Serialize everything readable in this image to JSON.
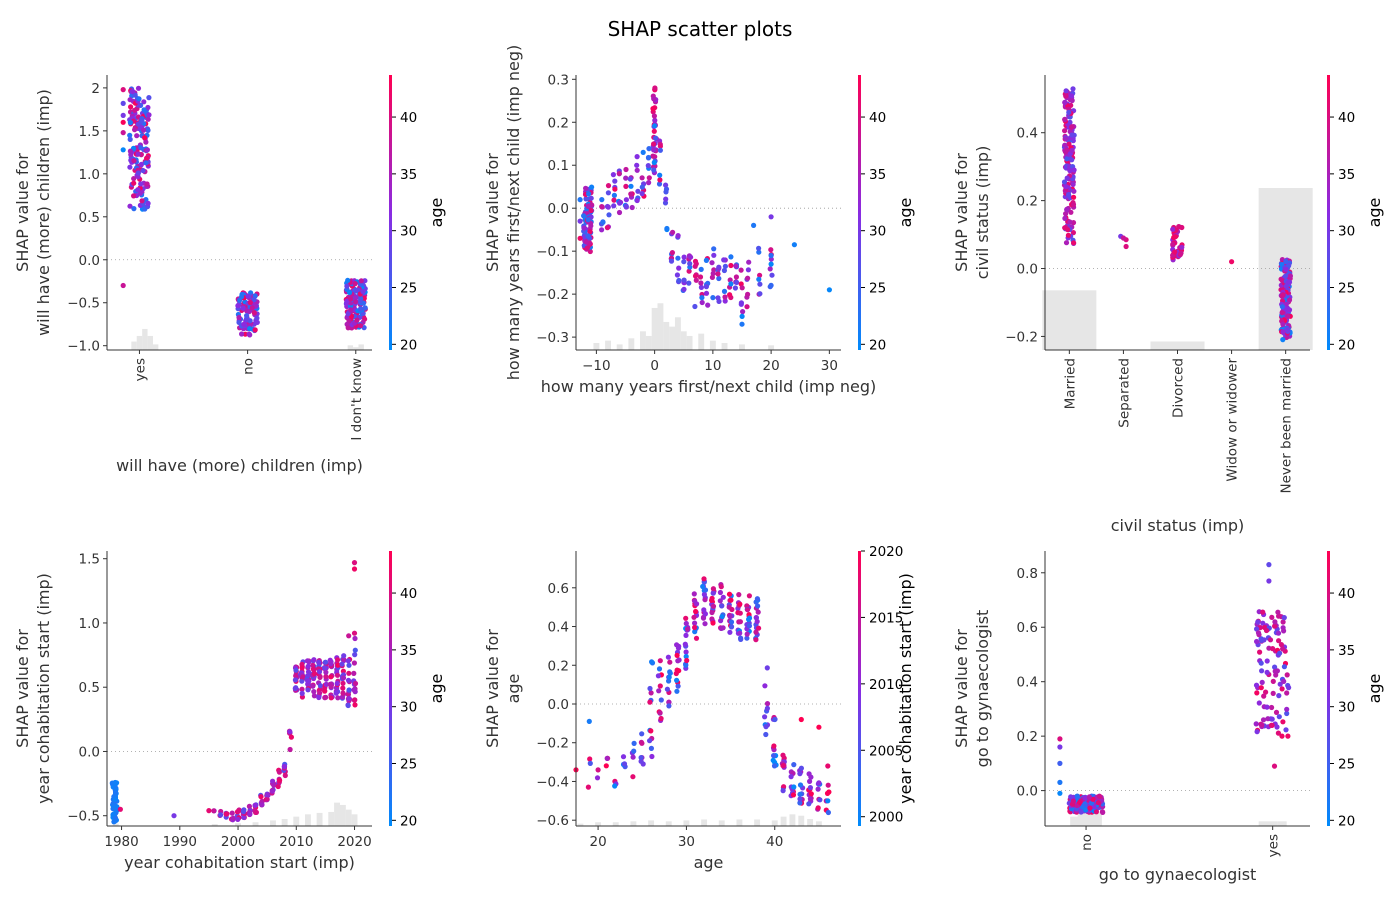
{
  "figure": {
    "title": "SHAP scatter plots"
  },
  "colors": {
    "low": "#008bfb",
    "mid": "#8a2be2",
    "high": "#ff0052",
    "hist": "#e6e6e6",
    "zero_line": "#999999"
  },
  "chart_data": [
    {
      "id": "p1",
      "type": "scatter",
      "xscale": "categorical",
      "xlabel": "will have (more) children (imp)",
      "ylabel": [
        "SHAP value for",
        "will have (more) children (imp)"
      ],
      "categories": [
        "yes",
        "no",
        "I don't know"
      ],
      "xlim": [
        -0.3,
        2.15
      ],
      "ylim": [
        -1.05,
        2.15
      ],
      "yticks": [
        -1.0,
        -0.5,
        0.0,
        0.5,
        1.0,
        1.5,
        2.0
      ],
      "color_feature": "age",
      "color_range": [
        19.5,
        43.7
      ],
      "color_ticks": [
        20,
        25,
        30,
        35,
        40
      ],
      "clusters": [
        {
          "x": 0,
          "ymin": 0.58,
          "ymax": 2.0,
          "n": 160,
          "cmin": 20,
          "cmax": 43
        },
        {
          "x": 1,
          "ymin": -0.88,
          "ymax": -0.38,
          "n": 100,
          "cmin": 20,
          "cmax": 43
        },
        {
          "x": 2,
          "ymin": -0.8,
          "ymax": -0.24,
          "n": 140,
          "cmin": 20,
          "cmax": 43
        }
      ],
      "points": [
        [
          -0.15,
          -0.3,
          38
        ],
        [
          -0.15,
          1.28,
          20
        ],
        [
          -0.15,
          1.48,
          38
        ],
        [
          -0.15,
          1.6,
          43
        ],
        [
          -0.15,
          1.68,
          30
        ],
        [
          -0.15,
          1.82,
          28
        ],
        [
          -0.15,
          1.98,
          40
        ]
      ],
      "hist": {
        "bins": [
          [
            -0.05,
            0.18
          ],
          [
            0,
            0.3
          ],
          [
            0.05,
            0.45
          ],
          [
            0.1,
            0.3
          ],
          [
            0.15,
            0.12
          ],
          [
            1.95,
            0.1
          ],
          [
            2.0,
            0.06
          ],
          [
            2.05,
            0.12
          ]
        ]
      }
    },
    {
      "id": "p2",
      "type": "scatter",
      "xscale": "linear",
      "xlabel": "how many years first/next child (imp neg)",
      "ylabel": [
        "SHAP value for",
        "how many years first/next child (imp neg)"
      ],
      "xlim": [
        -13.5,
        32
      ],
      "xticks": [
        -10,
        0,
        10,
        20,
        30
      ],
      "ylim": [
        -0.33,
        0.31
      ],
      "yticks": [
        -0.3,
        -0.2,
        -0.1,
        0.0,
        0.1,
        0.2,
        0.3
      ],
      "color_feature": "age",
      "color_range": [
        19.5,
        43.7
      ],
      "color_ticks": [
        20,
        25,
        30,
        35,
        40
      ],
      "clusters": [
        {
          "x": -11.5,
          "xjit": 0.7,
          "ymin": -0.11,
          "ymax": 0.05,
          "n": 90,
          "cmin": 20,
          "cmax": 43
        },
        {
          "x": 0,
          "xjit": 0.3,
          "ymin": 0.08,
          "ymax": 0.28,
          "n": 30,
          "cmin": 28,
          "cmax": 43
        }
      ],
      "trend": {
        "x": [
          -9,
          -8,
          -7,
          -6,
          -5,
          -4,
          -3,
          -2,
          -1,
          0,
          1,
          2,
          3,
          4,
          5,
          6,
          7,
          8,
          9,
          10,
          11,
          12,
          13,
          14,
          15,
          16,
          18,
          20
        ],
        "y": [
          -0.02,
          0.0,
          0.02,
          0.03,
          0.05,
          0.06,
          0.07,
          0.08,
          0.09,
          0.14,
          0.1,
          0.0,
          -0.08,
          -0.12,
          -0.15,
          -0.16,
          -0.17,
          -0.17,
          -0.17,
          -0.15,
          -0.17,
          -0.18,
          -0.15,
          -0.17,
          -0.2,
          -0.17,
          -0.15,
          -0.15
        ],
        "spread": 0.06,
        "per": 7,
        "cmin_late": 20,
        "cmax_late": 43
      },
      "points": [
        [
          24,
          -0.085,
          21
        ],
        [
          30,
          -0.19,
          20
        ],
        [
          20,
          -0.13,
          20
        ],
        [
          20,
          -0.11,
          23
        ],
        [
          17,
          -0.04,
          22
        ],
        [
          20,
          -0.02,
          30
        ],
        [
          15,
          -0.27,
          22
        ],
        [
          -12.8,
          -0.07,
          42
        ],
        [
          -12.8,
          -0.03,
          30
        ],
        [
          -12.8,
          0.02,
          22
        ]
      ],
      "hist": {
        "bins": [
          [
            -10,
            0.15
          ],
          [
            -8,
            0.2
          ],
          [
            -6,
            0.12
          ],
          [
            -4,
            0.25
          ],
          [
            -2,
            0.4
          ],
          [
            -1,
            0.3
          ],
          [
            0,
            0.9
          ],
          [
            1,
            1.0
          ],
          [
            2,
            0.6
          ],
          [
            3,
            0.5
          ],
          [
            4,
            0.7
          ],
          [
            5,
            0.4
          ],
          [
            6,
            0.3
          ],
          [
            8,
            0.35
          ],
          [
            10,
            0.2
          ],
          [
            12,
            0.15
          ],
          [
            15,
            0.12
          ],
          [
            20,
            0.1
          ]
        ]
      }
    },
    {
      "id": "p3",
      "type": "scatter",
      "xscale": "categorical",
      "xlabel": "civil status (imp)",
      "ylabel": [
        "SHAP value for",
        "civil status (imp)"
      ],
      "categories": [
        "Married",
        "Separated",
        "Divorced",
        "Widow or widower",
        "Never been married"
      ],
      "xlim": [
        -0.45,
        4.45
      ],
      "ylim": [
        -0.24,
        0.57
      ],
      "yticks": [
        -0.2,
        0.0,
        0.2,
        0.4
      ],
      "color_feature": "age",
      "color_range": [
        19.5,
        43.7
      ],
      "color_ticks": [
        20,
        25,
        30,
        35,
        40
      ],
      "clusters": [
        {
          "x": 0,
          "ymin": 0.07,
          "ymax": 0.53,
          "n": 160,
          "cmin": 26,
          "cmax": 43
        },
        {
          "x": 2,
          "ymin": 0.02,
          "ymax": 0.13,
          "n": 45,
          "cmin": 32,
          "cmax": 43
        },
        {
          "x": 4,
          "ymin": -0.21,
          "ymax": 0.03,
          "n": 170,
          "cmin": 20,
          "cmax": 43
        }
      ],
      "points": [
        [
          0.95,
          0.095,
          30
        ],
        [
          1.05,
          0.085,
          40
        ],
        [
          1.05,
          0.065,
          40
        ],
        [
          1.0,
          0.09,
          38
        ],
        [
          3.0,
          0.02,
          42
        ]
      ],
      "hist": {
        "bins": [
          [
            0,
            0.35
          ],
          [
            2,
            0.05
          ],
          [
            4,
            0.95
          ]
        ]
      }
    },
    {
      "id": "p4",
      "type": "scatter",
      "xscale": "linear",
      "xlabel": "year cohabitation start (imp)",
      "ylabel": [
        "SHAP value for",
        "year cohabitation start (imp)"
      ],
      "xlim": [
        1977.5,
        2023
      ],
      "xticks": [
        1980,
        1990,
        2000,
        2010,
        2020
      ],
      "ylim": [
        -0.58,
        1.56
      ],
      "yticks": [
        -0.5,
        0.0,
        0.5,
        1.0,
        1.5
      ],
      "color_feature": "age",
      "color_range": [
        19.5,
        43.7
      ],
      "color_ticks": [
        20,
        25,
        30,
        35,
        40
      ],
      "clusters": [
        {
          "x": 1978.8,
          "xjit": 0.4,
          "ymin": -0.55,
          "ymax": -0.23,
          "n": 45,
          "cmin": 20,
          "cmax": 23
        }
      ],
      "trend": {
        "x": [
          1996,
          1997,
          1998,
          1999,
          2000,
          2001,
          2002,
          2003,
          2004,
          2005,
          2006,
          2007,
          2008,
          2009,
          2010,
          2011,
          2012,
          2013,
          2014,
          2015,
          2016,
          2017,
          2018,
          2019,
          2020
        ],
        "y": [
          -0.47,
          -0.48,
          -0.49,
          -0.5,
          -0.49,
          -0.48,
          -0.46,
          -0.44,
          -0.38,
          -0.33,
          -0.28,
          -0.22,
          -0.14,
          0.1,
          0.55,
          0.56,
          0.57,
          0.57,
          0.56,
          0.56,
          0.55,
          0.57,
          0.58,
          0.55,
          0.6
        ],
        "spread": [
          0.03,
          0.03,
          0.03,
          0.04,
          0.04,
          0.04,
          0.04,
          0.05,
          0.05,
          0.05,
          0.06,
          0.08,
          0.08,
          0.1,
          0.12,
          0.14,
          0.14,
          0.15,
          0.15,
          0.15,
          0.16,
          0.17,
          0.18,
          0.2,
          0.28
        ],
        "per": [
          2,
          3,
          4,
          5,
          8,
          8,
          8,
          8,
          8,
          8,
          8,
          8,
          8,
          6,
          16,
          18,
          18,
          18,
          18,
          18,
          18,
          18,
          18,
          18,
          14
        ],
        "cmin_late": 26,
        "cmax_late": 43
      },
      "points": [
        [
          1979.8,
          -0.45,
          41
        ],
        [
          1989,
          -0.5,
          30
        ],
        [
          1995,
          -0.46,
          41
        ],
        [
          2020,
          1.42,
          42
        ],
        [
          2020,
          1.47,
          40
        ],
        [
          2020,
          0.92,
          40
        ],
        [
          2019,
          0.9,
          38
        ]
      ],
      "hist": {
        "bins": [
          [
            1979,
            0.05
          ],
          [
            1996,
            0.04
          ],
          [
            2000,
            0.06
          ],
          [
            2003,
            0.08
          ],
          [
            2006,
            0.12
          ],
          [
            2008,
            0.15
          ],
          [
            2010,
            0.2
          ],
          [
            2012,
            0.25
          ],
          [
            2014,
            0.28
          ],
          [
            2016,
            0.3
          ],
          [
            2017,
            0.5
          ],
          [
            2018,
            0.45
          ],
          [
            2019,
            0.35
          ],
          [
            2020,
            0.25
          ]
        ]
      }
    },
    {
      "id": "p5",
      "type": "scatter",
      "xscale": "linear",
      "xlabel": "age",
      "ylabel": [
        "SHAP value for",
        "age"
      ],
      "xlim": [
        17.5,
        47.5
      ],
      "xticks": [
        20,
        30,
        40
      ],
      "ylim": [
        -0.63,
        0.79
      ],
      "yticks": [
        -0.6,
        -0.4,
        -0.2,
        0.0,
        0.2,
        0.4,
        0.6
      ],
      "color_feature": "year cohabitation start (imp)",
      "color_range": [
        1999.3,
        2020
      ],
      "color_ticks": [
        2000,
        2005,
        2010,
        2015,
        2020
      ],
      "clusters": [],
      "trend": {
        "x": [
          19,
          20,
          21,
          22,
          23,
          24,
          25,
          26,
          27,
          28,
          29,
          30,
          31,
          32,
          33,
          34,
          35,
          36,
          37,
          38,
          39,
          40,
          41,
          42,
          43,
          44,
          45,
          46
        ],
        "y": [
          -0.35,
          -0.33,
          -0.32,
          -0.38,
          -0.33,
          -0.3,
          -0.25,
          -0.05,
          0.05,
          0.12,
          0.2,
          0.3,
          0.45,
          0.55,
          0.52,
          0.5,
          0.48,
          0.45,
          0.44,
          0.43,
          0.0,
          -0.2,
          -0.35,
          -0.4,
          -0.42,
          -0.45,
          -0.45,
          -0.47
        ],
        "spread": [
          0.08,
          0.06,
          0.06,
          0.06,
          0.06,
          0.1,
          0.12,
          0.28,
          0.18,
          0.15,
          0.14,
          0.15,
          0.12,
          0.15,
          0.12,
          0.12,
          0.12,
          0.12,
          0.12,
          0.12,
          0.2,
          0.15,
          0.1,
          0.1,
          0.1,
          0.1,
          0.1,
          0.1
        ],
        "per": [
          3,
          2,
          3,
          3,
          4,
          5,
          7,
          12,
          12,
          12,
          14,
          16,
          16,
          16,
          16,
          16,
          16,
          16,
          16,
          16,
          10,
          12,
          12,
          12,
          12,
          12,
          8,
          6
        ],
        "cmin_late": 1999,
        "cmax_late": 2020
      },
      "points": [
        [
          19,
          -0.09,
          2001
        ],
        [
          17.5,
          -0.34,
          2020
        ],
        [
          43,
          -0.08,
          2020
        ],
        [
          45,
          -0.12,
          2020
        ],
        [
          46,
          -0.32,
          2018
        ],
        [
          46,
          -0.5,
          2000
        ],
        [
          40,
          -0.08,
          2005
        ]
      ],
      "hist": {
        "bins": [
          [
            18,
            0.05
          ],
          [
            20,
            0.08
          ],
          [
            22,
            0.08
          ],
          [
            24,
            0.1
          ],
          [
            26,
            0.12
          ],
          [
            28,
            0.1
          ],
          [
            30,
            0.12
          ],
          [
            32,
            0.14
          ],
          [
            34,
            0.12
          ],
          [
            36,
            0.14
          ],
          [
            38,
            0.14
          ],
          [
            40,
            0.12
          ],
          [
            41,
            0.2
          ],
          [
            42,
            0.25
          ],
          [
            43,
            0.22
          ],
          [
            44,
            0.15
          ],
          [
            45,
            0.1
          ]
        ]
      }
    },
    {
      "id": "p6",
      "type": "scatter",
      "xscale": "categorical",
      "xlabel": "go to gynaecologist",
      "ylabel": [
        "SHAP value for",
        "go to gynaecologist"
      ],
      "categories": [
        "no",
        "yes"
      ],
      "xlim": [
        -0.22,
        1.2
      ],
      "ylim": [
        -0.13,
        0.88
      ],
      "yticks": [
        0.0,
        0.2,
        0.4,
        0.6,
        0.8
      ],
      "color_feature": "age",
      "color_range": [
        19.5,
        43.7
      ],
      "color_ticks": [
        20,
        25,
        30,
        35,
        40
      ],
      "clusters": [
        {
          "x": 0,
          "ymin": -0.08,
          "ymax": -0.02,
          "n": 160,
          "cmin": 20,
          "cmax": 43
        },
        {
          "x": 1,
          "ymin": 0.2,
          "ymax": 0.66,
          "n": 110,
          "cmin": 26,
          "cmax": 43
        }
      ],
      "points": [
        [
          0.98,
          0.83,
          28
        ],
        [
          0.98,
          0.77,
          30
        ],
        [
          1.01,
          0.09,
          40
        ],
        [
          1.05,
          0.2,
          42
        ],
        [
          -0.14,
          0.19,
          40
        ],
        [
          -0.14,
          0.16,
          30
        ],
        [
          -0.14,
          0.1,
          25
        ],
        [
          -0.14,
          0.03,
          22
        ],
        [
          -0.14,
          -0.01,
          20
        ]
      ],
      "hist": {
        "bins": [
          [
            -0.06,
            0.2
          ],
          [
            -0.02,
            0.35
          ],
          [
            0.02,
            0.5
          ],
          [
            0.06,
            0.3
          ],
          [
            0.95,
            0.1
          ],
          [
            1.0,
            0.1
          ],
          [
            1.05,
            0.1
          ]
        ]
      }
    }
  ]
}
